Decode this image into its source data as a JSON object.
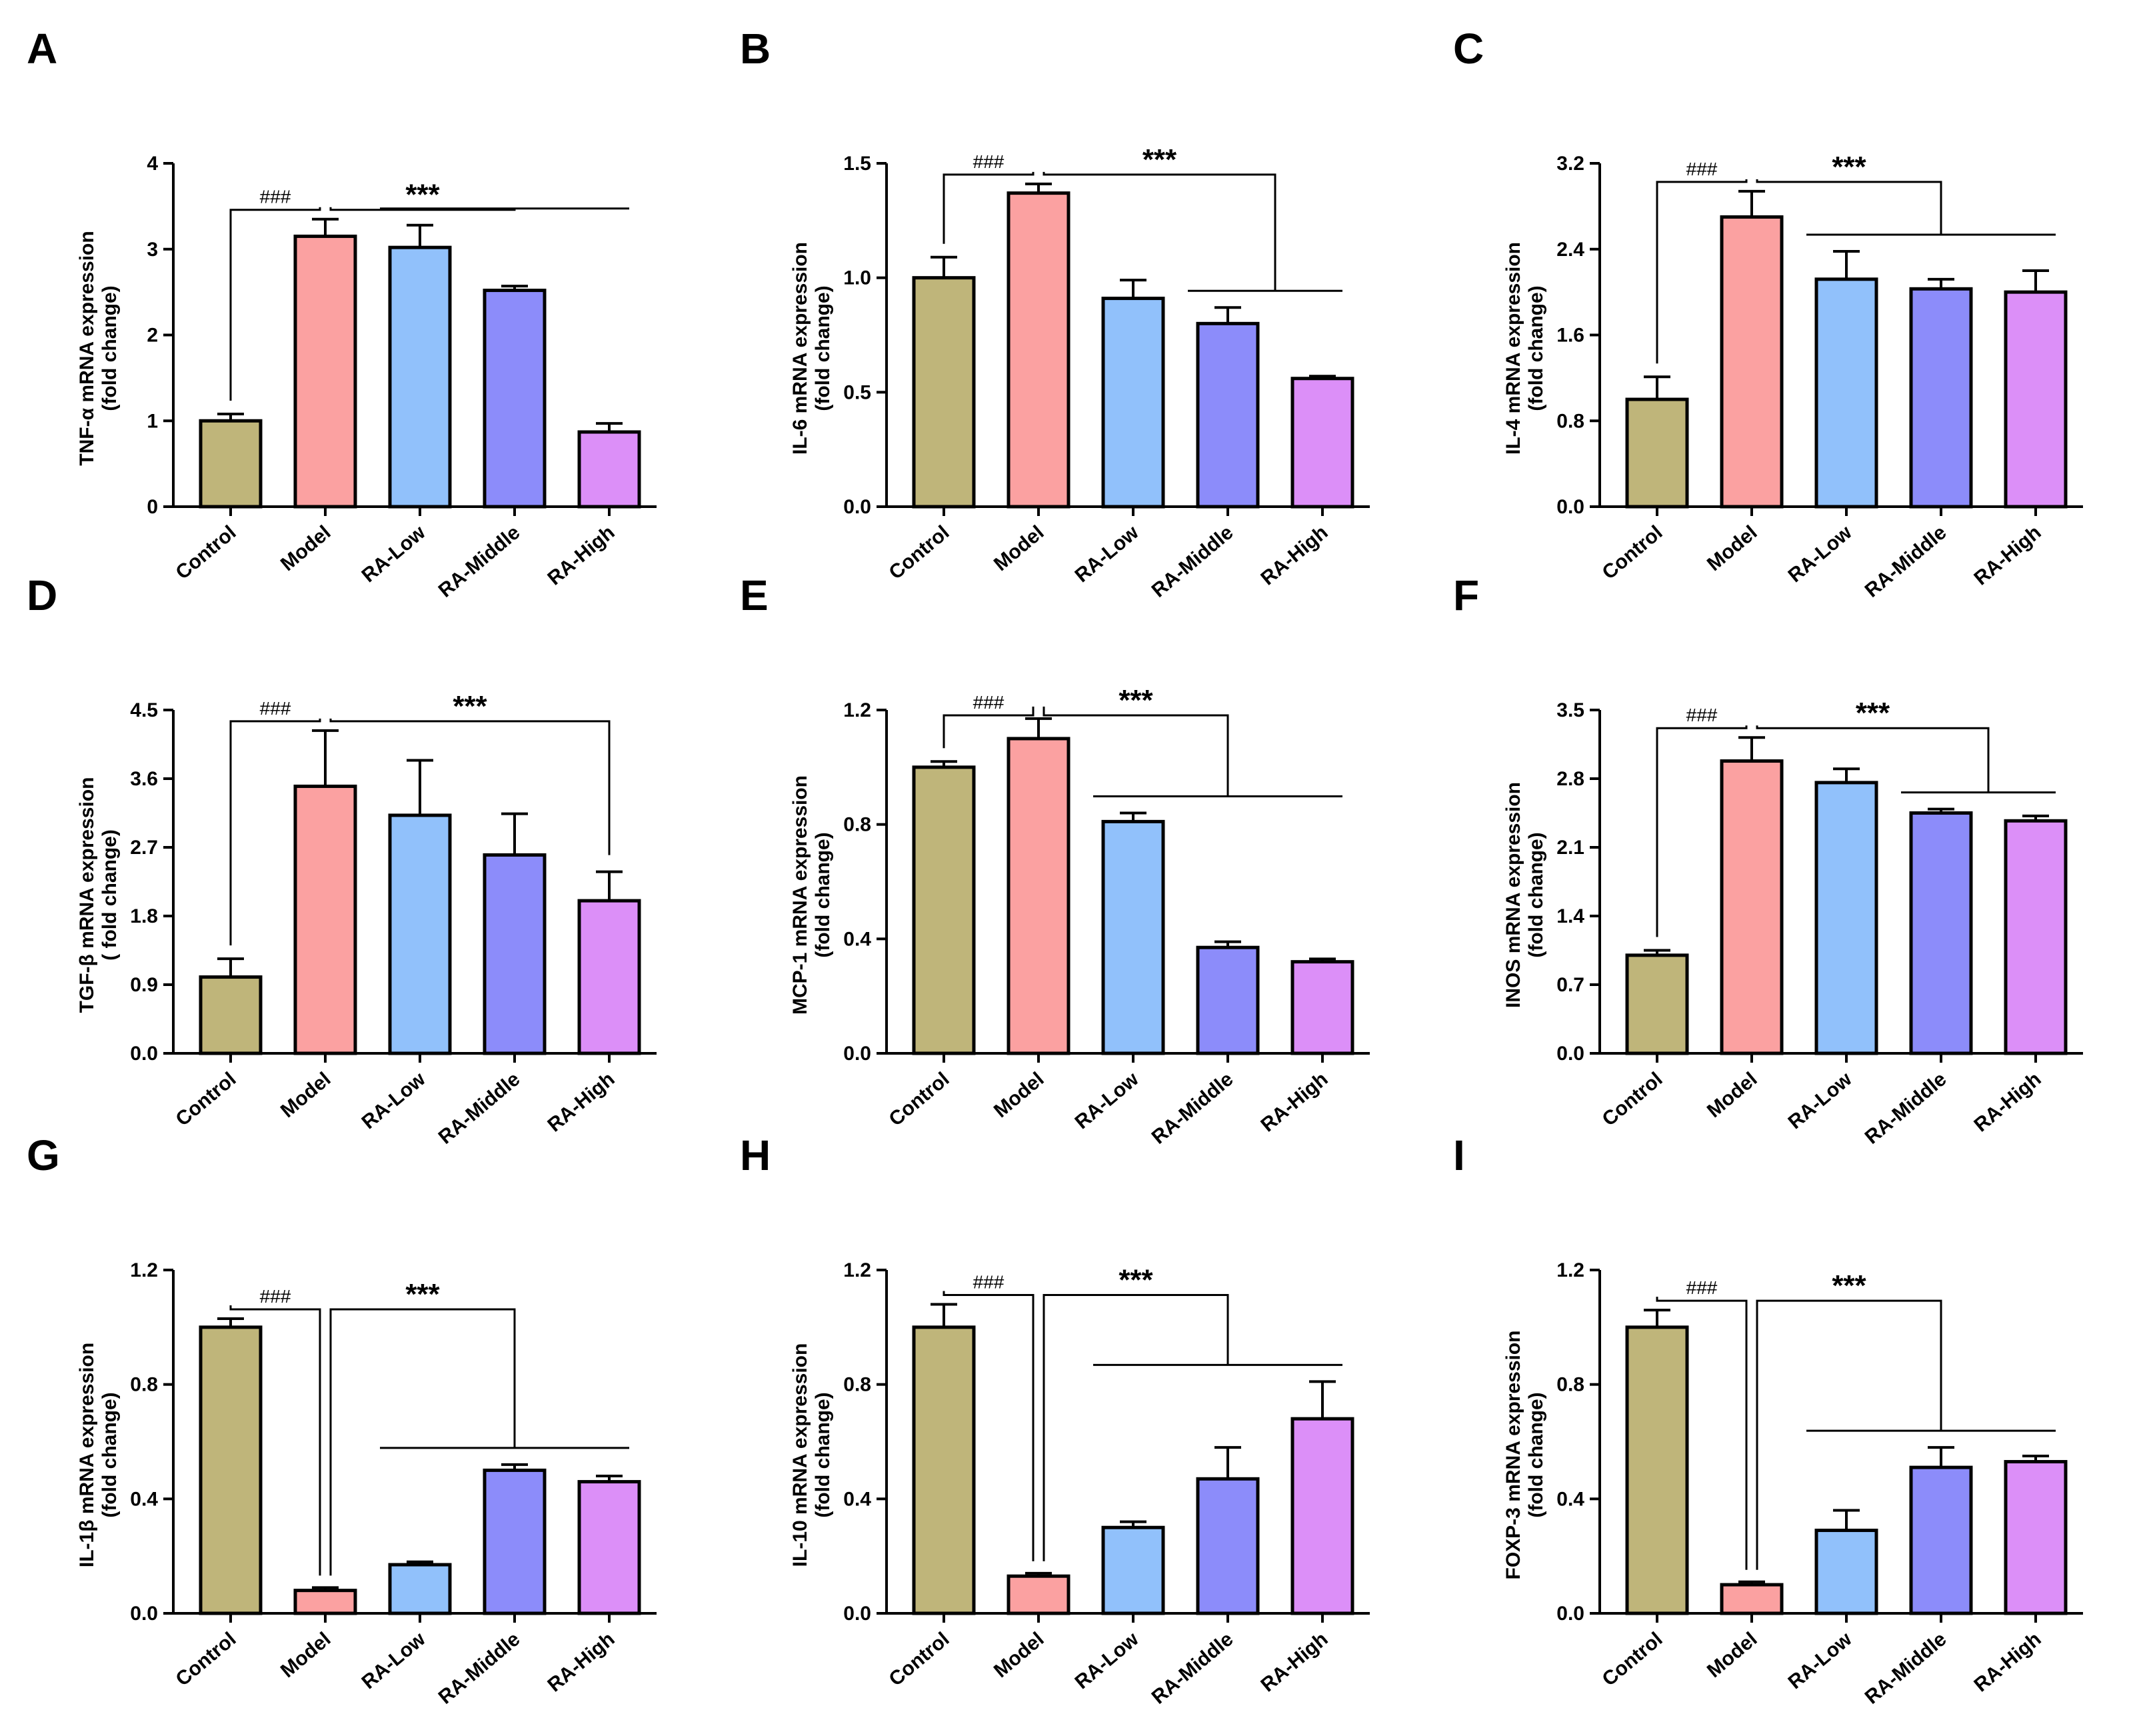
{
  "categories": [
    "Control",
    "Model",
    "RA-Low",
    "RA-Middle",
    "RA-High"
  ],
  "colors": {
    "Control": "#bfb57a",
    "Model": "#fba1a1",
    "RA-Low": "#91c1fb",
    "RA-Middle": "#8c8cfa",
    "RA-High": "#dc8ff8",
    "outline": "#000000"
  },
  "chart_data": [
    {
      "type": "bar",
      "letter": "A",
      "ylabel": [
        "TNF-α mRNA expression",
        "(fold change)"
      ],
      "ylim": [
        0,
        4
      ],
      "ticks": [
        "0",
        "1",
        "2",
        "3",
        "4"
      ],
      "categories": [
        "Control",
        "Model",
        "RA-Low",
        "RA-Middle",
        "RA-High"
      ],
      "values": [
        1.0,
        3.15,
        3.02,
        2.52,
        0.87
      ],
      "errors": [
        0.08,
        0.2,
        0.26,
        0.05,
        0.1
      ],
      "sig_model": "###",
      "sig_treat": "***"
    },
    {
      "type": "bar",
      "letter": "B",
      "ylabel": [
        "IL-6 mRNA expression",
        "(fold change)"
      ],
      "ylim": [
        0,
        1.5
      ],
      "ticks": [
        "0.0",
        "0.5",
        "1.0",
        "1.5"
      ],
      "categories": [
        "Control",
        "Model",
        "RA-Low",
        "RA-Middle",
        "RA-High"
      ],
      "values": [
        1.0,
        1.37,
        0.91,
        0.8,
        0.56
      ],
      "errors": [
        0.09,
        0.04,
        0.08,
        0.07,
        0.01
      ],
      "sig_model": "###",
      "sig_treat": "***"
    },
    {
      "type": "bar",
      "letter": "C",
      "ylabel": [
        "IL-4 mRNA expression",
        "(fold change)"
      ],
      "ylim": [
        0,
        3.2
      ],
      "ticks": [
        "0.0",
        "0.8",
        "1.6",
        "2.4",
        "3.2"
      ],
      "categories": [
        "Control",
        "Model",
        "RA-Low",
        "RA-Middle",
        "RA-High"
      ],
      "values": [
        1.0,
        2.7,
        2.12,
        2.03,
        2.0
      ],
      "errors": [
        0.21,
        0.24,
        0.26,
        0.09,
        0.2
      ],
      "sig_model": "###",
      "sig_treat": "***"
    },
    {
      "type": "bar",
      "letter": "D",
      "ylabel": [
        "TGF-β mRNA expression",
        "( fold change)"
      ],
      "ylim": [
        0,
        4.5
      ],
      "ticks": [
        "0.0",
        "0.9",
        "1.8",
        "2.7",
        "3.6",
        "4.5"
      ],
      "categories": [
        "Control",
        "Model",
        "RA-Low",
        "RA-Middle",
        "RA-High"
      ],
      "values": [
        1.0,
        3.5,
        3.12,
        2.6,
        2.0
      ],
      "errors": [
        0.24,
        0.73,
        0.72,
        0.54,
        0.38
      ],
      "sig_model": "###",
      "sig_treat": "***"
    },
    {
      "type": "bar",
      "letter": "E",
      "ylabel": [
        "MCP-1 mRNA expression",
        "(fold change)"
      ],
      "ylim": [
        0,
        1.2
      ],
      "ticks": [
        "0.0",
        "0.4",
        "0.8",
        "1.2"
      ],
      "categories": [
        "Control",
        "Model",
        "RA-Low",
        "RA-Middle",
        "RA-High"
      ],
      "values": [
        1.0,
        1.1,
        0.81,
        0.37,
        0.32
      ],
      "errors": [
        0.02,
        0.07,
        0.03,
        0.02,
        0.01
      ],
      "sig_model": "###",
      "sig_treat": "***"
    },
    {
      "type": "bar",
      "letter": "F",
      "ylabel": [
        "INOS mRNA expression",
        "(fold change)"
      ],
      "ylim": [
        0,
        3.5
      ],
      "ticks": [
        "0.0",
        "0.7",
        "1.4",
        "2.1",
        "2.8",
        "3.5"
      ],
      "categories": [
        "Control",
        "Model",
        "RA-Low",
        "RA-Middle",
        "RA-High"
      ],
      "values": [
        1.0,
        2.98,
        2.76,
        2.45,
        2.37
      ],
      "errors": [
        0.05,
        0.24,
        0.14,
        0.04,
        0.05
      ],
      "sig_model": "###",
      "sig_treat": "***"
    },
    {
      "type": "bar",
      "letter": "G",
      "ylabel": [
        "IL-1β mRNA expression",
        "(fold change)"
      ],
      "ylim": [
        0,
        1.2
      ],
      "ticks": [
        "0.0",
        "0.4",
        "0.8",
        "1.2"
      ],
      "categories": [
        "Control",
        "Model",
        "RA-Low",
        "RA-Middle",
        "RA-High"
      ],
      "values": [
        1.0,
        0.08,
        0.17,
        0.5,
        0.46
      ],
      "errors": [
        0.03,
        0.01,
        0.01,
        0.02,
        0.02
      ],
      "sig_model": "###",
      "sig_treat": "***"
    },
    {
      "type": "bar",
      "letter": "H",
      "ylabel": [
        "IL-10 mRNA expression",
        "(fold change)"
      ],
      "ylim": [
        0,
        1.2
      ],
      "ticks": [
        "0.0",
        "0.4",
        "0.8",
        "1.2"
      ],
      "categories": [
        "Control",
        "Model",
        "RA-Low",
        "RA-Middle",
        "RA-High"
      ],
      "values": [
        1.0,
        0.13,
        0.3,
        0.47,
        0.68
      ],
      "errors": [
        0.08,
        0.01,
        0.02,
        0.11,
        0.13
      ],
      "sig_model": "###",
      "sig_treat": "***"
    },
    {
      "type": "bar",
      "letter": "I",
      "ylabel": [
        "FOXP-3 mRNA expression",
        "(fold change)"
      ],
      "ylim": [
        0,
        1.2
      ],
      "ticks": [
        "0.0",
        "0.4",
        "0.8",
        "1.2"
      ],
      "categories": [
        "Control",
        "Model",
        "RA-Low",
        "RA-Middle",
        "RA-High"
      ],
      "values": [
        1.0,
        0.1,
        0.29,
        0.51,
        0.53
      ],
      "errors": [
        0.06,
        0.01,
        0.07,
        0.07,
        0.02
      ],
      "sig_model": "###",
      "sig_treat": "***"
    }
  ]
}
